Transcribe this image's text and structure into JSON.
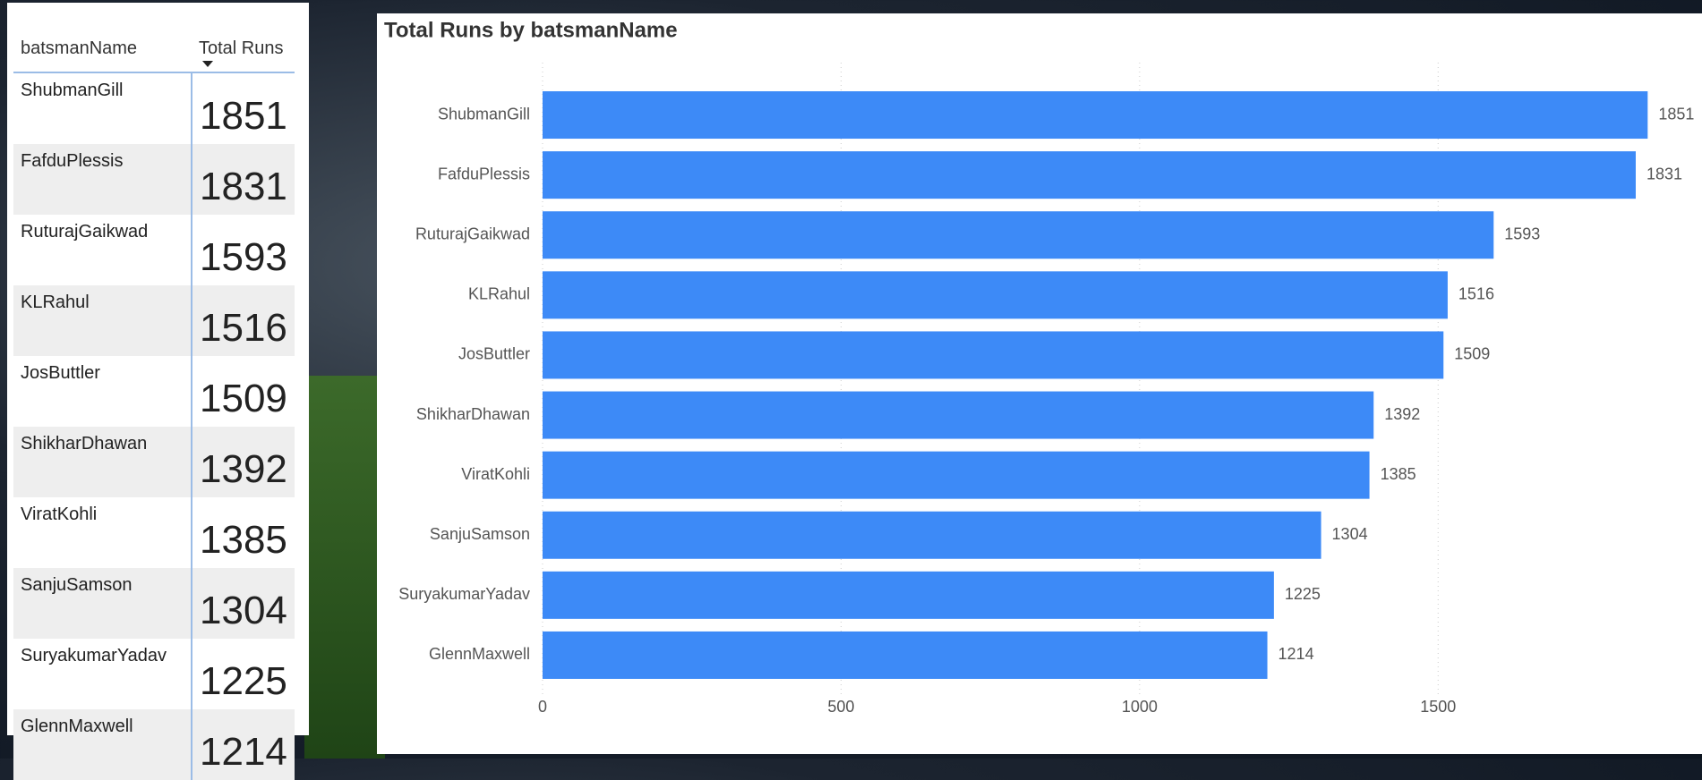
{
  "table": {
    "columns": [
      "batsmanName",
      "Total Runs"
    ],
    "rows": [
      [
        "ShubmanGill",
        1851
      ],
      [
        "FafduPlessis",
        1831
      ],
      [
        "RuturajGaikwad",
        1593
      ],
      [
        "KLRahul",
        1516
      ],
      [
        "JosButtler",
        1509
      ],
      [
        "ShikharDhawan",
        1392
      ],
      [
        "ViratKohli",
        1385
      ],
      [
        "SanjuSamson",
        1304
      ],
      [
        "SuryakumarYadav",
        1225
      ],
      [
        "GlennMaxwell",
        1214
      ]
    ]
  },
  "chart_data": {
    "type": "bar",
    "orientation": "horizontal",
    "title": "Total Runs by batsmanName",
    "categories": [
      "ShubmanGill",
      "FafduPlessis",
      "RuturajGaikwad",
      "KLRahul",
      "JosButtler",
      "ShikharDhawan",
      "ViratKohli",
      "SanjuSamson",
      "SuryakumarYadav",
      "GlennMaxwell"
    ],
    "values": [
      1851,
      1831,
      1593,
      1516,
      1509,
      1392,
      1385,
      1304,
      1225,
      1214
    ],
    "color": "#3d8af7",
    "xlim": [
      0,
      1900
    ],
    "xticks": [
      0,
      500,
      1000,
      1500
    ],
    "grid": true,
    "data_labels": true
  }
}
